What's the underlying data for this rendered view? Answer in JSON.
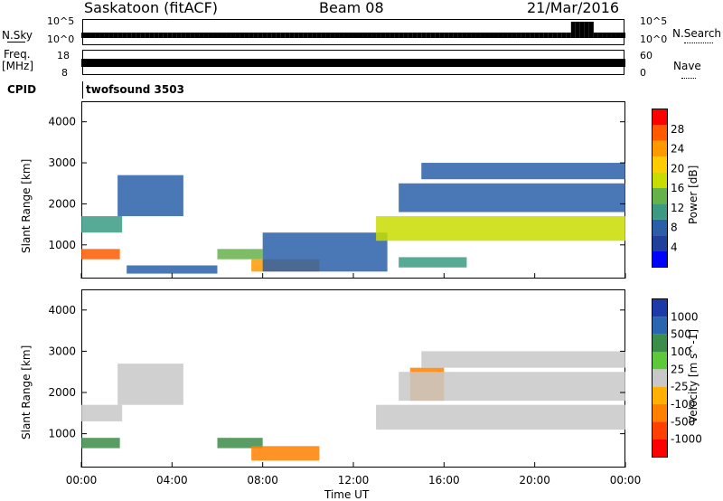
{
  "header": {
    "title": "Saskatoon (fitACF)",
    "beam": "Beam 08",
    "date": "21/Mar/2016"
  },
  "strip_nsky": {
    "left_label": "N.Sky",
    "right_label": "N.Search",
    "ytick_top": "10^5",
    "ytick_bottom": "10^0",
    "rtick_top": "10^5",
    "rtick_bottom": "10^0"
  },
  "strip_freq": {
    "left_label_1": "Freq.",
    "left_label_2": "[MHz]",
    "right_label": "Nave",
    "ytick_top": "18",
    "ytick_bottom": "8",
    "rtick_top": "60",
    "rtick_bottom": "0"
  },
  "strip_cpid": {
    "left_label": "CPID",
    "program": "twofsound 3503"
  },
  "panels": {
    "power_ylabel": "Slant Range [km]",
    "velocity_ylabel": "Slant Range [km]",
    "xlabel": "Time UT"
  },
  "power_colorbar": {
    "label": "Power [dB]",
    "ticks": [
      "28",
      "24",
      "20",
      "16",
      "12",
      "8",
      "4"
    ],
    "colors": [
      "#ff0000",
      "#ff5a00",
      "#ff9900",
      "#ffcc00",
      "#c8dc00",
      "#66b24a",
      "#3a9b82",
      "#2a5fa8",
      "#1f3f9a",
      "#0000ff"
    ]
  },
  "velocity_colorbar": {
    "label": "Velocity [m s^-1]",
    "ticks": [
      "1000",
      "500",
      "100",
      "25",
      "-25",
      "-100",
      "-500",
      "-1000"
    ],
    "colors": [
      "#1e3aa8",
      "#2a66b0",
      "#3c8c4a",
      "#5cc83a",
      "#c8c8c8",
      "#ffb000",
      "#ff8000",
      "#ff4000",
      "#ff0000"
    ]
  },
  "chart_data": {
    "type": "heatmap",
    "x_ticks": [
      "00:00",
      "04:00",
      "08:00",
      "12:00",
      "16:00",
      "20:00",
      "00:00"
    ],
    "y_ticks": [
      "1000",
      "2000",
      "3000",
      "4000"
    ],
    "xlim_hours": [
      0,
      24
    ],
    "ylim_km": [
      180,
      4500
    ],
    "power_regions": [
      {
        "t": [
          0.0,
          1.8
        ],
        "r": [
          1300,
          1700
        ],
        "db": 12
      },
      {
        "t": [
          1.6,
          4.5
        ],
        "r": [
          1700,
          2700
        ],
        "db": 10
      },
      {
        "t": [
          0.0,
          1.7
        ],
        "r": [
          650,
          900
        ],
        "db": 26
      },
      {
        "t": [
          2.0,
          6.0
        ],
        "r": [
          300,
          500
        ],
        "db": 9
      },
      {
        "t": [
          6.0,
          8.0
        ],
        "r": [
          650,
          900
        ],
        "db": 14
      },
      {
        "t": [
          7.5,
          10.5
        ],
        "r": [
          350,
          650
        ],
        "db": 24
      },
      {
        "t": [
          8.0,
          13.5
        ],
        "r": [
          350,
          1300
        ],
        "db": 8
      },
      {
        "t": [
          13.0,
          24.0
        ],
        "r": [
          1100,
          1700
        ],
        "db": 18
      },
      {
        "t": [
          14.0,
          24.0
        ],
        "r": [
          1800,
          2500
        ],
        "db": 9
      },
      {
        "t": [
          15.0,
          24.0
        ],
        "r": [
          2600,
          3000
        ],
        "db": 8
      },
      {
        "t": [
          14.0,
          17.0
        ],
        "r": [
          450,
          700
        ],
        "db": 12
      }
    ],
    "velocity_regions": [
      {
        "t": [
          0.0,
          1.8
        ],
        "r": [
          1300,
          1700
        ],
        "v": 0
      },
      {
        "t": [
          1.6,
          4.5
        ],
        "r": [
          1700,
          2700
        ],
        "v": 0
      },
      {
        "t": [
          0.0,
          1.7
        ],
        "r": [
          650,
          900
        ],
        "v": 150
      },
      {
        "t": [
          6.0,
          8.0
        ],
        "r": [
          650,
          900
        ],
        "v": 150
      },
      {
        "t": [
          7.5,
          10.5
        ],
        "r": [
          350,
          700
        ],
        "v": -300
      },
      {
        "t": [
          14.5,
          16.0
        ],
        "r": [
          1800,
          2600
        ],
        "v": -300
      },
      {
        "t": [
          13.0,
          24.0
        ],
        "r": [
          1100,
          1700
        ],
        "v": 0
      },
      {
        "t": [
          14.0,
          24.0
        ],
        "r": [
          1800,
          2500
        ],
        "v": 0
      },
      {
        "t": [
          15.0,
          24.0
        ],
        "r": [
          2600,
          3000
        ],
        "v": 0
      }
    ]
  }
}
